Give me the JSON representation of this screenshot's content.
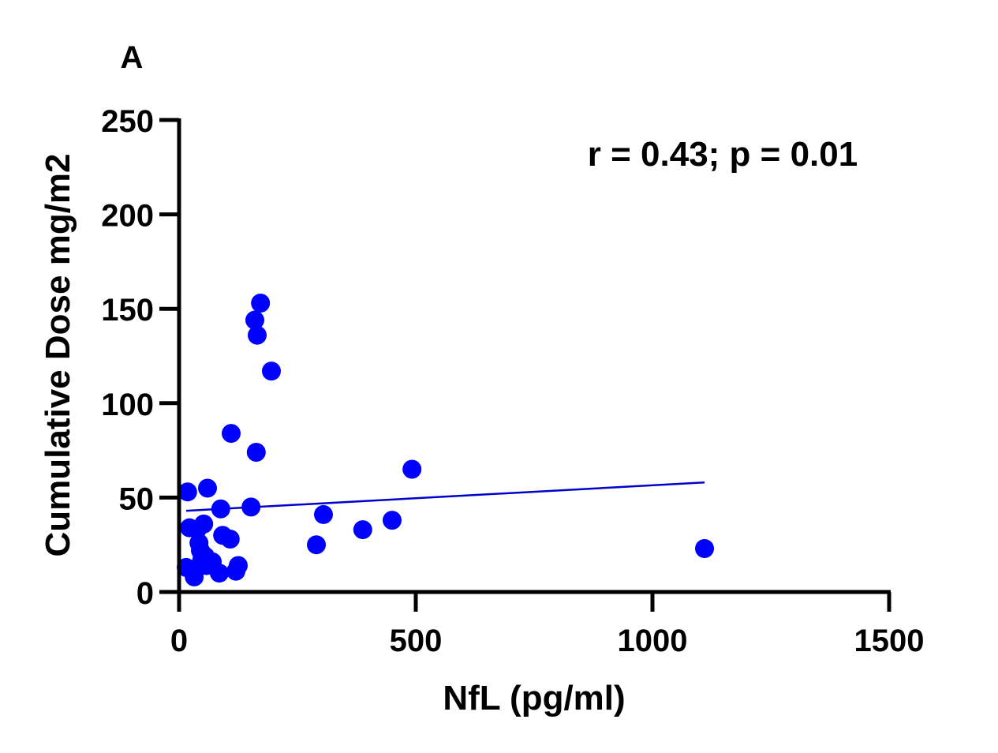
{
  "panel_label": "A",
  "annotation": "r = 0.43; p = 0.01",
  "colors": {
    "points": "#0000ff",
    "fit_line": "#0000cc",
    "axis": "#000000"
  },
  "chart_data": {
    "type": "scatter",
    "xlabel": "NfL (pg/ml)",
    "ylabel": "Cumulative Dose mg/m2",
    "xlim": [
      0,
      1500
    ],
    "ylim": [
      0,
      250
    ],
    "x_ticks": [
      0,
      500,
      1000,
      1500
    ],
    "y_ticks": [
      0,
      50,
      100,
      150,
      200,
      250
    ],
    "grid": false,
    "points": [
      {
        "x": 15,
        "y": 13
      },
      {
        "x": 18,
        "y": 53
      },
      {
        "x": 22,
        "y": 34
      },
      {
        "x": 30,
        "y": 12
      },
      {
        "x": 32,
        "y": 8
      },
      {
        "x": 38,
        "y": 33
      },
      {
        "x": 42,
        "y": 26
      },
      {
        "x": 45,
        "y": 22
      },
      {
        "x": 48,
        "y": 17
      },
      {
        "x": 52,
        "y": 36
      },
      {
        "x": 55,
        "y": 19
      },
      {
        "x": 58,
        "y": 14
      },
      {
        "x": 60,
        "y": 55
      },
      {
        "x": 70,
        "y": 16
      },
      {
        "x": 85,
        "y": 10
      },
      {
        "x": 88,
        "y": 44
      },
      {
        "x": 92,
        "y": 30
      },
      {
        "x": 108,
        "y": 28
      },
      {
        "x": 110,
        "y": 84
      },
      {
        "x": 120,
        "y": 11
      },
      {
        "x": 125,
        "y": 14
      },
      {
        "x": 152,
        "y": 45
      },
      {
        "x": 160,
        "y": 144
      },
      {
        "x": 163,
        "y": 74
      },
      {
        "x": 165,
        "y": 136
      },
      {
        "x": 172,
        "y": 153
      },
      {
        "x": 195,
        "y": 117
      },
      {
        "x": 290,
        "y": 25
      },
      {
        "x": 305,
        "y": 41
      },
      {
        "x": 388,
        "y": 33
      },
      {
        "x": 450,
        "y": 38
      },
      {
        "x": 492,
        "y": 65
      },
      {
        "x": 1110,
        "y": 23
      }
    ],
    "fit_line": {
      "x": [
        15,
        1110
      ],
      "y": [
        43,
        58
      ]
    }
  }
}
